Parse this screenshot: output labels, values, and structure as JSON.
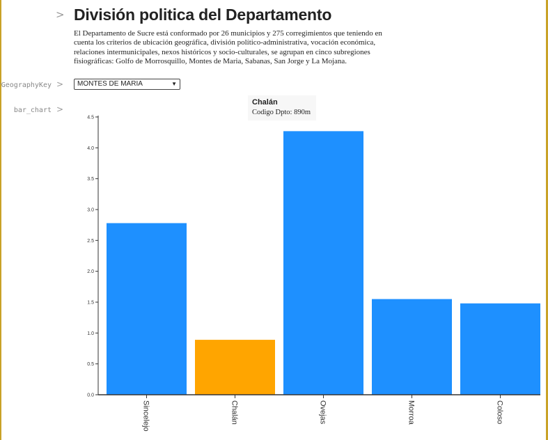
{
  "page": {
    "title": "División politica del Departamento",
    "description": "El Departamento de Sucre está conformado por 26 municipios y 275 corregimientos que teniendo en cuenta los criterios de ubicación geográfica, división político-administrativa, vocación económica, relaciones intermunicipales, nexos históricos y socio-culturales, se agrupan en cinco subregiones fisiográficas: Golfo de Morrosquillo, Montes de Maria, Sabanas, San Jorge y La Mojana."
  },
  "variables": {
    "geography_key_label": "rGeographyKey",
    "bar_chart_label": "bar_chart",
    "toggle_glyph": ">"
  },
  "select": {
    "value": "MONTES DE MARIA",
    "caret": "▼"
  },
  "tooltip": {
    "name": "Chalán",
    "code": "Codigo Dpto: 890m"
  },
  "colors": {
    "bar": "#1e90ff",
    "highlight": "#ffa500",
    "axis": "#333333"
  },
  "chart_data": {
    "type": "bar",
    "categories": [
      "Sincelejo",
      "Chalán",
      "Ovejas",
      "Morroa",
      "Coloso"
    ],
    "values": [
      2.78,
      0.89,
      4.27,
      1.55,
      1.48
    ],
    "highlighted": "Chalán",
    "ylim": [
      0,
      4.5
    ],
    "yticks": [
      "0.0",
      "0.5",
      "1.0",
      "1.5",
      "2.0",
      "2.5",
      "3.0",
      "3.5",
      "4.0",
      "4.5"
    ],
    "xlabel": "",
    "ylabel": "",
    "grid": false
  }
}
